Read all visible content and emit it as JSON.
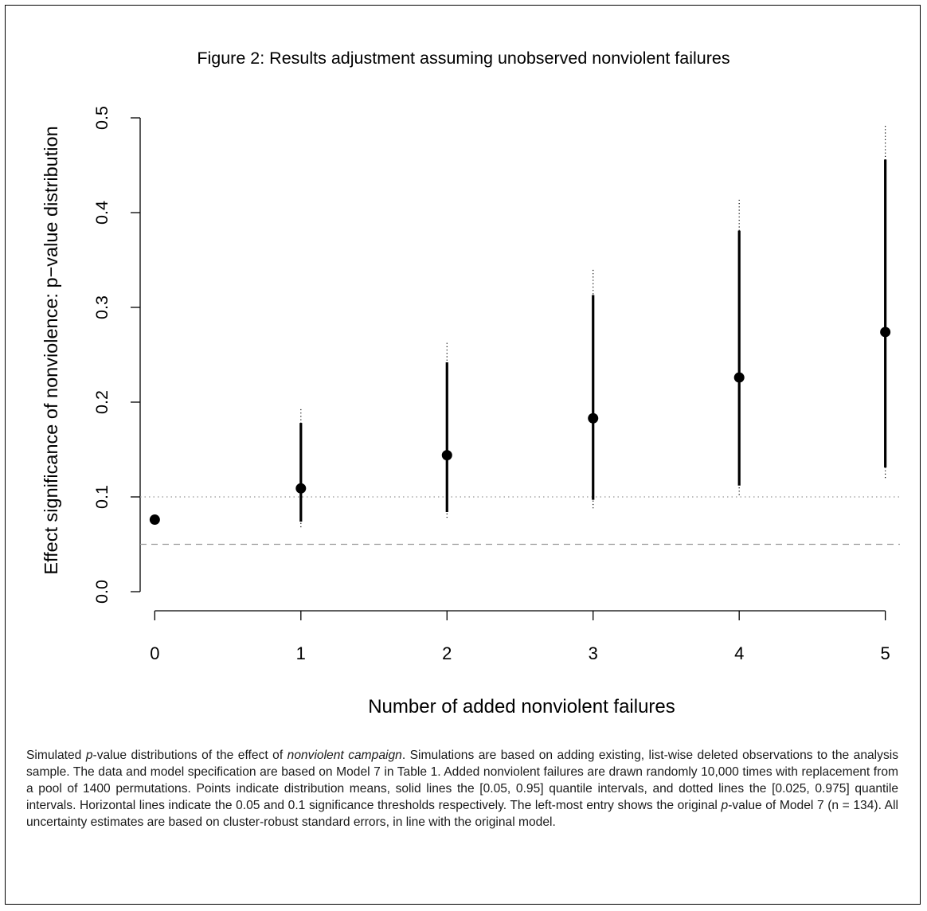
{
  "chart_data": {
    "type": "scatter",
    "title": "Figure 2: Results adjustment assuming unobserved nonviolent failures",
    "xlabel": "Number of added nonviolent failures",
    "ylabel": "Effect significance of nonviolence: p−value distribution",
    "x_ticks": [
      "0",
      "1",
      "2",
      "3",
      "4",
      "5"
    ],
    "y_ticks": [
      "0.0",
      "0.1",
      "0.2",
      "0.3",
      "0.4",
      "0.5"
    ],
    "xlim": [
      -0.1,
      5.1
    ],
    "ylim": [
      0,
      0.5
    ],
    "points": [
      {
        "x": 0,
        "mean": 0.076,
        "q05": null,
        "q95": null,
        "q025": null,
        "q975": null
      },
      {
        "x": 1,
        "mean": 0.109,
        "q05": 0.074,
        "q95": 0.178,
        "q025": 0.068,
        "q975": 0.195
      },
      {
        "x": 2,
        "mean": 0.144,
        "q05": 0.084,
        "q95": 0.242,
        "q025": 0.078,
        "q975": 0.265
      },
      {
        "x": 3,
        "mean": 0.183,
        "q05": 0.097,
        "q95": 0.313,
        "q025": 0.088,
        "q975": 0.342
      },
      {
        "x": 4,
        "mean": 0.226,
        "q05": 0.112,
        "q95": 0.381,
        "q025": 0.102,
        "q975": 0.416
      },
      {
        "x": 5,
        "mean": 0.274,
        "q05": 0.131,
        "q95": 0.456,
        "q025": 0.12,
        "q975": 0.493
      }
    ],
    "reference_lines": [
      {
        "y": 0.1,
        "style": "dotted"
      },
      {
        "y": 0.05,
        "style": "dashed"
      }
    ],
    "grid": false,
    "colors": {
      "points": "#000000",
      "reference": "#999999"
    }
  },
  "caption": {
    "part1": "Simulated ",
    "italic1": "p",
    "part2": "-value distributions of the effect of ",
    "italic2": "nonviolent campaign",
    "part3": ". Simulations are based on adding existing, list-wise deleted observations to the analysis sample. The data and model specification are based on Model 7 in Table 1. Added nonviolent failures are drawn randomly 10,000 times with replacement from a pool of 1400 permutations. Points indicate distribution means, solid lines the [0.05, 0.95] quantile intervals, and dotted lines the [0.025, 0.975] quantile intervals. Horizontal lines indicate the 0.05 and 0.1 significance thresholds respectively.  The left-most entry shows the original ",
    "italic3": "p",
    "part4": "-value of Model 7 (n = 134).  All uncertainty estimates are based on cluster-robust standard errors, in line with the original model."
  }
}
